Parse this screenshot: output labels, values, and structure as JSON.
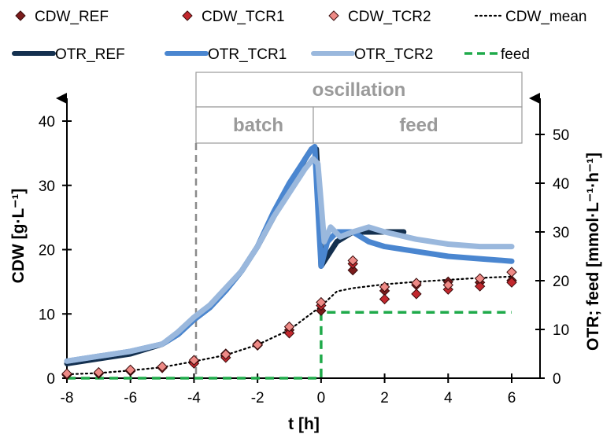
{
  "chart_data": {
    "type": "line",
    "xlabel": "t [h]",
    "ylabel_left": "CDW [g·L⁻¹]",
    "ylabel_right": "OTR; feed [mmol·L⁻¹·h⁻¹]",
    "xlim": [
      -8,
      6.5
    ],
    "ylim_left": [
      0,
      40
    ],
    "ylim_right": [
      0,
      55
    ],
    "x_ticks": [
      "-8",
      "-6",
      "-4",
      "-2",
      "0",
      "2",
      "4",
      "6"
    ],
    "y_left_ticks": [
      "0",
      "10",
      "20",
      "30",
      "40"
    ],
    "y_right_ticks": [
      "0",
      "10",
      "20",
      "30",
      "40",
      "50"
    ],
    "phases": {
      "top": "oscillation",
      "left": "batch",
      "right": "feed"
    },
    "legend": [
      {
        "label": "CDW_REF",
        "kind": "marker",
        "color": "#7b1c1c"
      },
      {
        "label": "CDW_TCR1",
        "kind": "marker",
        "color": "#c2272d"
      },
      {
        "label": "CDW_TCR2",
        "kind": "marker",
        "color": "#ee8a86"
      },
      {
        "label": "CDW_mean",
        "kind": "dotted",
        "color": "#000000"
      },
      {
        "label": "OTR_REF",
        "kind": "line",
        "color": "#14304f"
      },
      {
        "label": "OTR_TCR1",
        "kind": "line",
        "color": "#4a86d0"
      },
      {
        "label": "OTR_TCR2",
        "kind": "line",
        "color": "#9ab8dd"
      },
      {
        "label": "feed",
        "kind": "dashed",
        "color": "#1faa4a"
      }
    ],
    "series": [
      {
        "name": "CDW_REF",
        "axis": "left",
        "x": [
          -8,
          -7,
          -6,
          -5,
          -4,
          -3,
          -2,
          -1,
          0,
          1,
          2,
          3,
          4,
          5,
          6
        ],
        "y": [
          0.5,
          0.7,
          1.1,
          1.7,
          2.6,
          3.8,
          5.3,
          7.5,
          10.5,
          16.8,
          13.6,
          14.5,
          15.0,
          14.9,
          15.2
        ]
      },
      {
        "name": "CDW_TCR1",
        "axis": "left",
        "x": [
          -8,
          -7,
          -6,
          -5,
          -4,
          -3,
          -2,
          -1,
          0,
          1,
          2,
          3,
          4,
          5,
          6
        ],
        "y": [
          0.6,
          0.8,
          1.2,
          1.6,
          2.3,
          3.2,
          5.1,
          7.0,
          11.3,
          17.8,
          12.3,
          13.1,
          13.8,
          14.3,
          14.9
        ]
      },
      {
        "name": "CDW_TCR2",
        "axis": "left",
        "x": [
          -8,
          -7,
          -6,
          -5,
          -4,
          -3,
          -2,
          -1,
          0,
          1,
          2,
          3,
          4,
          5,
          6
        ],
        "y": [
          0.7,
          0.9,
          1.3,
          1.8,
          2.8,
          3.7,
          5.2,
          8.0,
          11.8,
          18.3,
          14.2,
          14.8,
          14.5,
          15.5,
          16.5
        ]
      },
      {
        "name": "CDW_mean",
        "axis": "left",
        "x": [
          -8,
          -7,
          -6,
          -5,
          -4,
          -3,
          -2,
          -1,
          0,
          0.5,
          1,
          2,
          3,
          4,
          5,
          6
        ],
        "y": [
          0.6,
          0.8,
          1.2,
          1.7,
          2.6,
          3.6,
          5.2,
          7.5,
          11.2,
          13.5,
          14.0,
          14.6,
          15.0,
          15.3,
          15.6,
          15.8
        ]
      },
      {
        "name": "OTR_REF",
        "axis": "right",
        "x": [
          -8,
          -7,
          -6,
          -5,
          -4.5,
          -4,
          -3.5,
          -3,
          -2.5,
          -2,
          -1.5,
          -1,
          -0.5,
          -0.3,
          -0.15,
          -0.05,
          0,
          0.2,
          0.5,
          1,
          1.5,
          2,
          2.6
        ],
        "y": [
          3,
          4,
          5,
          7,
          9,
          12,
          14.5,
          18,
          22,
          27,
          33,
          39,
          45,
          47,
          47,
          35,
          23,
          25,
          28,
          30,
          30,
          30,
          30
        ]
      },
      {
        "name": "OTR_TCR1",
        "axis": "right",
        "x": [
          -8,
          -7,
          -6,
          -5,
          -4.5,
          -4,
          -3.5,
          -3,
          -2.5,
          -2,
          -1.5,
          -1,
          -0.5,
          -0.3,
          -0.2,
          -0.1,
          0,
          0.2,
          0.5,
          1,
          1.5,
          2,
          3,
          4,
          5,
          6
        ],
        "y": [
          3.5,
          4.5,
          5.5,
          7,
          9,
          12,
          14.5,
          18,
          22,
          27,
          34,
          40,
          45,
          47,
          47.5,
          35,
          23,
          28,
          30,
          30,
          28,
          27,
          26,
          25,
          24.5,
          24
        ]
      },
      {
        "name": "OTR_TCR2",
        "axis": "right",
        "x": [
          -8,
          -7,
          -6,
          -5,
          -4.5,
          -4,
          -3.5,
          -3,
          -2.5,
          -2,
          -1.5,
          -1,
          -0.5,
          -0.25,
          -0.1,
          0,
          0.1,
          0.3,
          0.6,
          1,
          1.5,
          2,
          3,
          4,
          5,
          6
        ],
        "y": [
          3.5,
          4.5,
          5.5,
          7,
          9.5,
          12.5,
          15,
          18.5,
          22,
          27,
          33,
          38,
          43,
          45,
          44,
          36,
          28,
          31,
          29,
          30,
          31,
          30,
          28.5,
          27.5,
          27,
          27
        ]
      },
      {
        "name": "feed",
        "axis": "right",
        "x": [
          -8,
          -0.02,
          0,
          0,
          6
        ],
        "y": [
          0,
          0,
          0,
          13.5,
          13.5
        ]
      }
    ],
    "vline_x": -4,
    "grid": false
  }
}
